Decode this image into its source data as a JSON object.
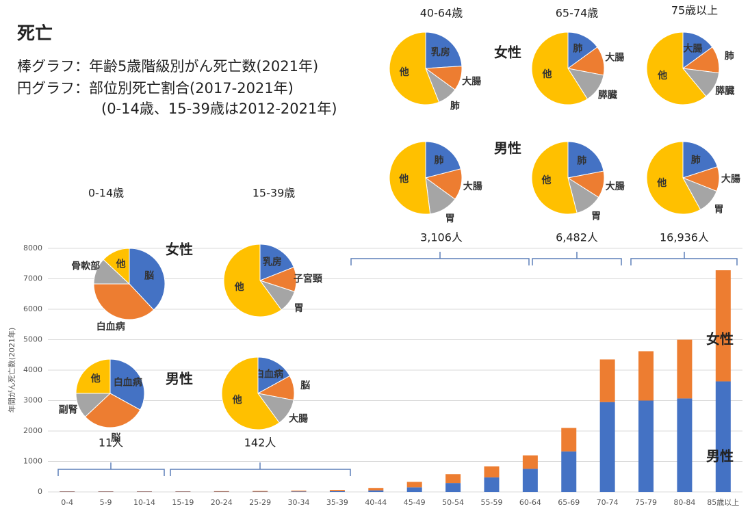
{
  "header": {
    "title": "死亡",
    "lines": [
      "棒グラフ：年齢5歳階級別がん死亡数(2021年)",
      "円グラフ：部位別死亡割合(2017-2021年)",
      "(0-14歳、15-39歳は2012-2021年)"
    ]
  },
  "chart_data": {
    "type": "bar",
    "stacked": true,
    "y_label": "年間がん死亡数(2021年)",
    "categories": [
      "0-4",
      "5-9",
      "10-14",
      "15-19",
      "20-24",
      "25-29",
      "30-34",
      "35-39",
      "40-44",
      "45-49",
      "50-54",
      "55-59",
      "60-64",
      "65-69",
      "70-74",
      "75-79",
      "80-84",
      "85歳以上"
    ],
    "series": [
      {
        "name": "男性",
        "color": "#4472c4",
        "values": [
          10,
          10,
          10,
          10,
          10,
          10,
          15,
          25,
          50,
          150,
          290,
          480,
          760,
          1330,
          2950,
          3000,
          3070,
          3630
        ]
      },
      {
        "name": "女性",
        "color": "#ed7d31",
        "values": [
          10,
          10,
          10,
          10,
          15,
          20,
          25,
          40,
          80,
          180,
          290,
          360,
          440,
          770,
          1400,
          1620,
          1930,
          3650
        ]
      }
    ],
    "ylim": [
      0,
      8000
    ],
    "yticks": [
      0,
      1000,
      2000,
      3000,
      4000,
      5000,
      6000,
      7000,
      8000
    ],
    "grid": true
  },
  "pie_colors": [
    "#4472c4",
    "#ed7d31",
    "#a5a5a5",
    "#ffc000"
  ],
  "sex_labels": [
    "女性",
    "男性"
  ],
  "pie_groups": [
    {
      "title": "40-64歳",
      "count": "3,106人",
      "pies": [
        {
          "type": "pie",
          "labels": [
            "乳房",
            "大腸",
            "肺",
            "他"
          ],
          "values": [
            24,
            11,
            9,
            56
          ]
        },
        {
          "type": "pie",
          "labels": [
            "肺",
            "大腸",
            "胃",
            "他"
          ],
          "values": [
            21,
            14,
            13,
            52
          ]
        }
      ]
    },
    {
      "title": "65-74歳",
      "count": "6,482人",
      "pies": [
        {
          "type": "pie",
          "labels": [
            "肺",
            "大腸",
            "膵臓",
            "他"
          ],
          "values": [
            15,
            13,
            13,
            59
          ]
        },
        {
          "type": "pie",
          "labels": [
            "肺",
            "大腸",
            "胃",
            "他"
          ],
          "values": [
            22,
            12,
            12,
            54
          ]
        }
      ]
    },
    {
      "title": "75歳以上",
      "count": "16,936人",
      "pies": [
        {
          "type": "pie",
          "labels": [
            "大腸",
            "肺",
            "膵臓",
            "他"
          ],
          "values": [
            15,
            12,
            12,
            61
          ]
        },
        {
          "type": "pie",
          "labels": [
            "肺",
            "大腸",
            "胃",
            "他"
          ],
          "values": [
            20,
            11,
            11,
            58
          ]
        }
      ]
    },
    {
      "title": "0-14歳",
      "count": "11人",
      "pies": [
        {
          "type": "pie",
          "labels": [
            "脳",
            "白血病",
            "骨軟部",
            "他"
          ],
          "values": [
            38,
            37,
            12,
            13
          ]
        },
        {
          "type": "pie",
          "labels": [
            "白血病",
            "脳",
            "副腎",
            "他"
          ],
          "values": [
            33,
            30,
            12,
            25
          ]
        }
      ]
    },
    {
      "title": "15-39歳",
      "count": "142人",
      "pies": [
        {
          "type": "pie",
          "labels": [
            "乳房",
            "子宮頸",
            "胃",
            "他"
          ],
          "values": [
            19,
            11,
            10,
            60
          ]
        },
        {
          "type": "pie",
          "labels": [
            "白血病",
            "脳",
            "大腸",
            "他"
          ],
          "values": [
            17,
            11,
            12,
            60
          ]
        }
      ]
    }
  ]
}
